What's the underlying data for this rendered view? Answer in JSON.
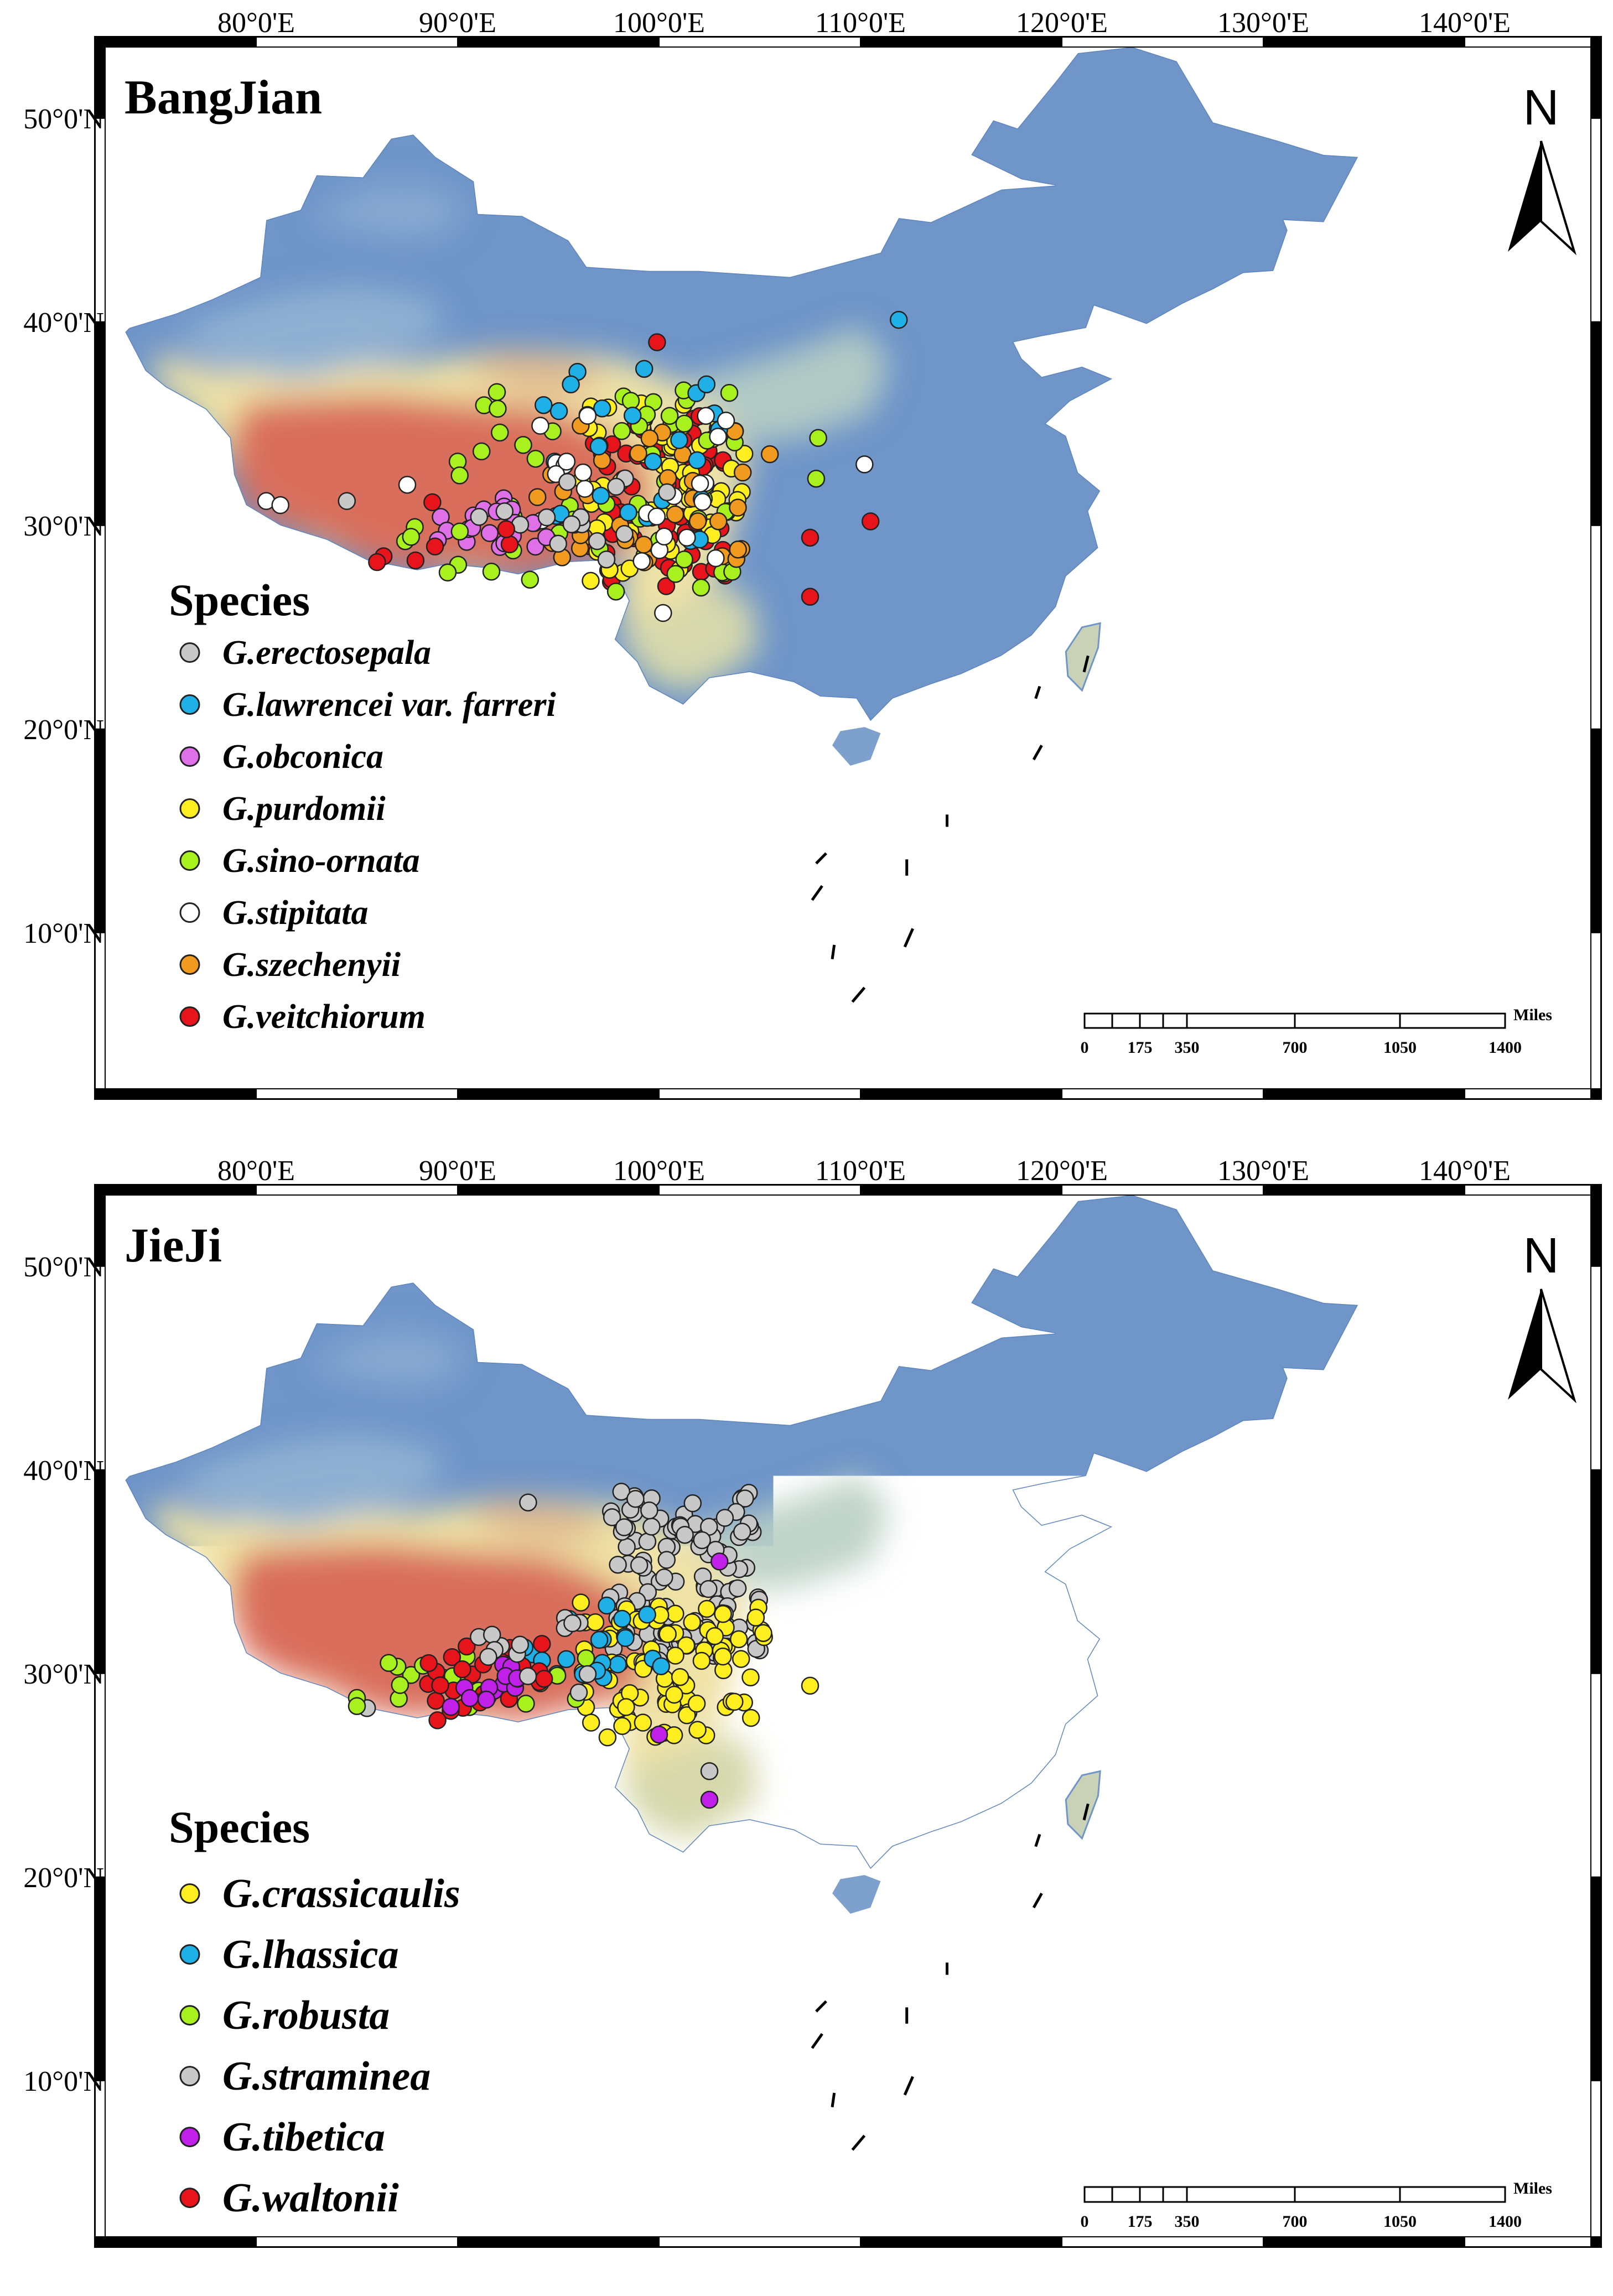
{
  "lon_labels": [
    "80°0'E",
    "90°0'E",
    "100°0'E",
    "110°0'E",
    "120°0'E",
    "130°0'E",
    "140°0'E"
  ],
  "lat_labels": [
    "50°0'N",
    "40°0'N",
    "30°0'N",
    "20°0'N",
    "10°0'N"
  ],
  "north_label": "N",
  "scalebar": {
    "ticks": [
      "0",
      "175",
      "350",
      "700",
      "1050",
      "1400"
    ],
    "unit": "Miles"
  },
  "colors": {
    "red": "#e8141c",
    "blue": "#1fb0e8",
    "violet": "#e070e8",
    "yellow": "#ffee20",
    "green": "#a8f01e",
    "white": "#ffffff",
    "orange": "#f09a20",
    "gray": "#c8c8c8",
    "purple": "#c020e8"
  },
  "panels": [
    {
      "title": "BangJian",
      "legend_title": "Species",
      "legend": [
        {
          "label": "G.erectosepala",
          "color": "#c8c8c8"
        },
        {
          "label": "G.lawrencei var. farreri",
          "color": "#1fb0e8"
        },
        {
          "label": "G.obconica",
          "color": "#e070e8"
        },
        {
          "label": "G.purdomii",
          "color": "#ffee20"
        },
        {
          "label": "G.sino-ornata",
          "color": "#a8f01e"
        },
        {
          "label": "G.stipitata",
          "color": "#ffffff"
        },
        {
          "label": "G.szechenyii",
          "color": "#f09a20"
        },
        {
          "label": "G.veitchiorum",
          "color": "#e8141c"
        }
      ]
    },
    {
      "title": "JieJi",
      "legend_title": "Species",
      "legend": [
        {
          "label": "G.crassicaulis",
          "color": "#ffee20"
        },
        {
          "label": "G.lhassica",
          "color": "#1fb0e8"
        },
        {
          "label": "G.robusta",
          "color": "#a8f01e"
        },
        {
          "label": "G.straminea",
          "color": "#c8c8c8"
        },
        {
          "label": "G.tibetica",
          "color": "#c020e8"
        },
        {
          "label": "G.waltonii",
          "color": "#e8141c"
        }
      ]
    }
  ]
}
